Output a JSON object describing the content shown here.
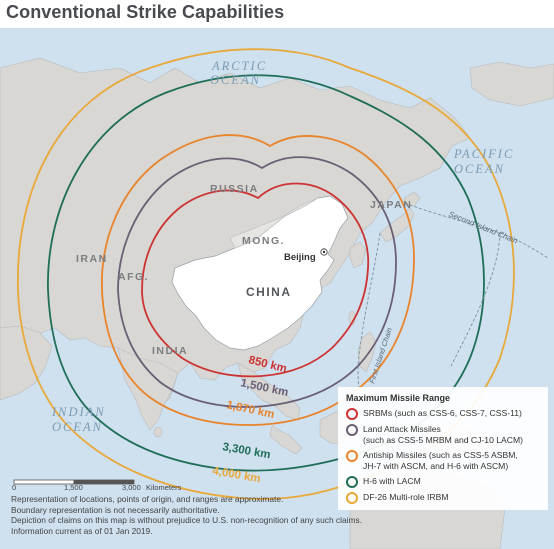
{
  "page": {
    "title": "Conventional Strike Capabilities"
  },
  "oceans": {
    "arctic_1": "ARCTIC",
    "arctic_2": "OCEAN",
    "pacific_1": "PACIFIC",
    "pacific_2": "OCEAN",
    "indian_1": "INDIAN",
    "indian_2": "OCEAN"
  },
  "countries": {
    "russia": "RUSSIA",
    "china": "CHINA",
    "mong": "MONG.",
    "iran": "IRAN",
    "afg": "AFG.",
    "india": "INDIA",
    "japan": "JAPAN"
  },
  "capital": {
    "name": "Beijing"
  },
  "chains": {
    "second": "Second Island Chain",
    "first": "First Island Chain"
  },
  "ranges": [
    {
      "label": "850 km",
      "color": "#cc3333"
    },
    {
      "label": "1,500 km",
      "color": "#6a5f75"
    },
    {
      "label": "1,870 km",
      "color": "#e8842b"
    },
    {
      "label": "3,300 km",
      "color": "#1f6e57"
    },
    {
      "label": "4,000 km",
      "color": "#e8a93a"
    }
  ],
  "legend": {
    "title": "Maximum Missile Range",
    "items": [
      {
        "line1": "SRBMs (such as CSS-6, CSS-7, CSS-11)",
        "line2": "",
        "color": "#cc3333"
      },
      {
        "line1": "Land Attack Missiles",
        "line2": "(such as CSS-5 MRBM and CJ-10 LACM)",
        "color": "#6a5f75"
      },
      {
        "line1": "Antiship Missiles (such as CSS-5 ASBM,",
        "line2": "JH-7 with ASCM, and H-6 with ASCM)",
        "color": "#e8842b"
      },
      {
        "line1": "H-6 with LACM",
        "line2": "",
        "color": "#1f6e57"
      },
      {
        "line1": "DF-26 Multi-role IRBM",
        "line2": "",
        "color": "#e8a93a"
      }
    ]
  },
  "scale": {
    "tick0": "0",
    "tick1": "1,500",
    "tick2": "3,000",
    "unit": "Kilometers"
  },
  "footnote": {
    "line1": "Representation of locations, points of origin, and ranges are approximate.",
    "line2": "Boundary representation is not necessarily authoritative.",
    "line3": "Depiction of claims on this map is without prejudice to U.S. non-recognition of any such claims.",
    "line4": "Information current as of 01 Jan 2019."
  }
}
